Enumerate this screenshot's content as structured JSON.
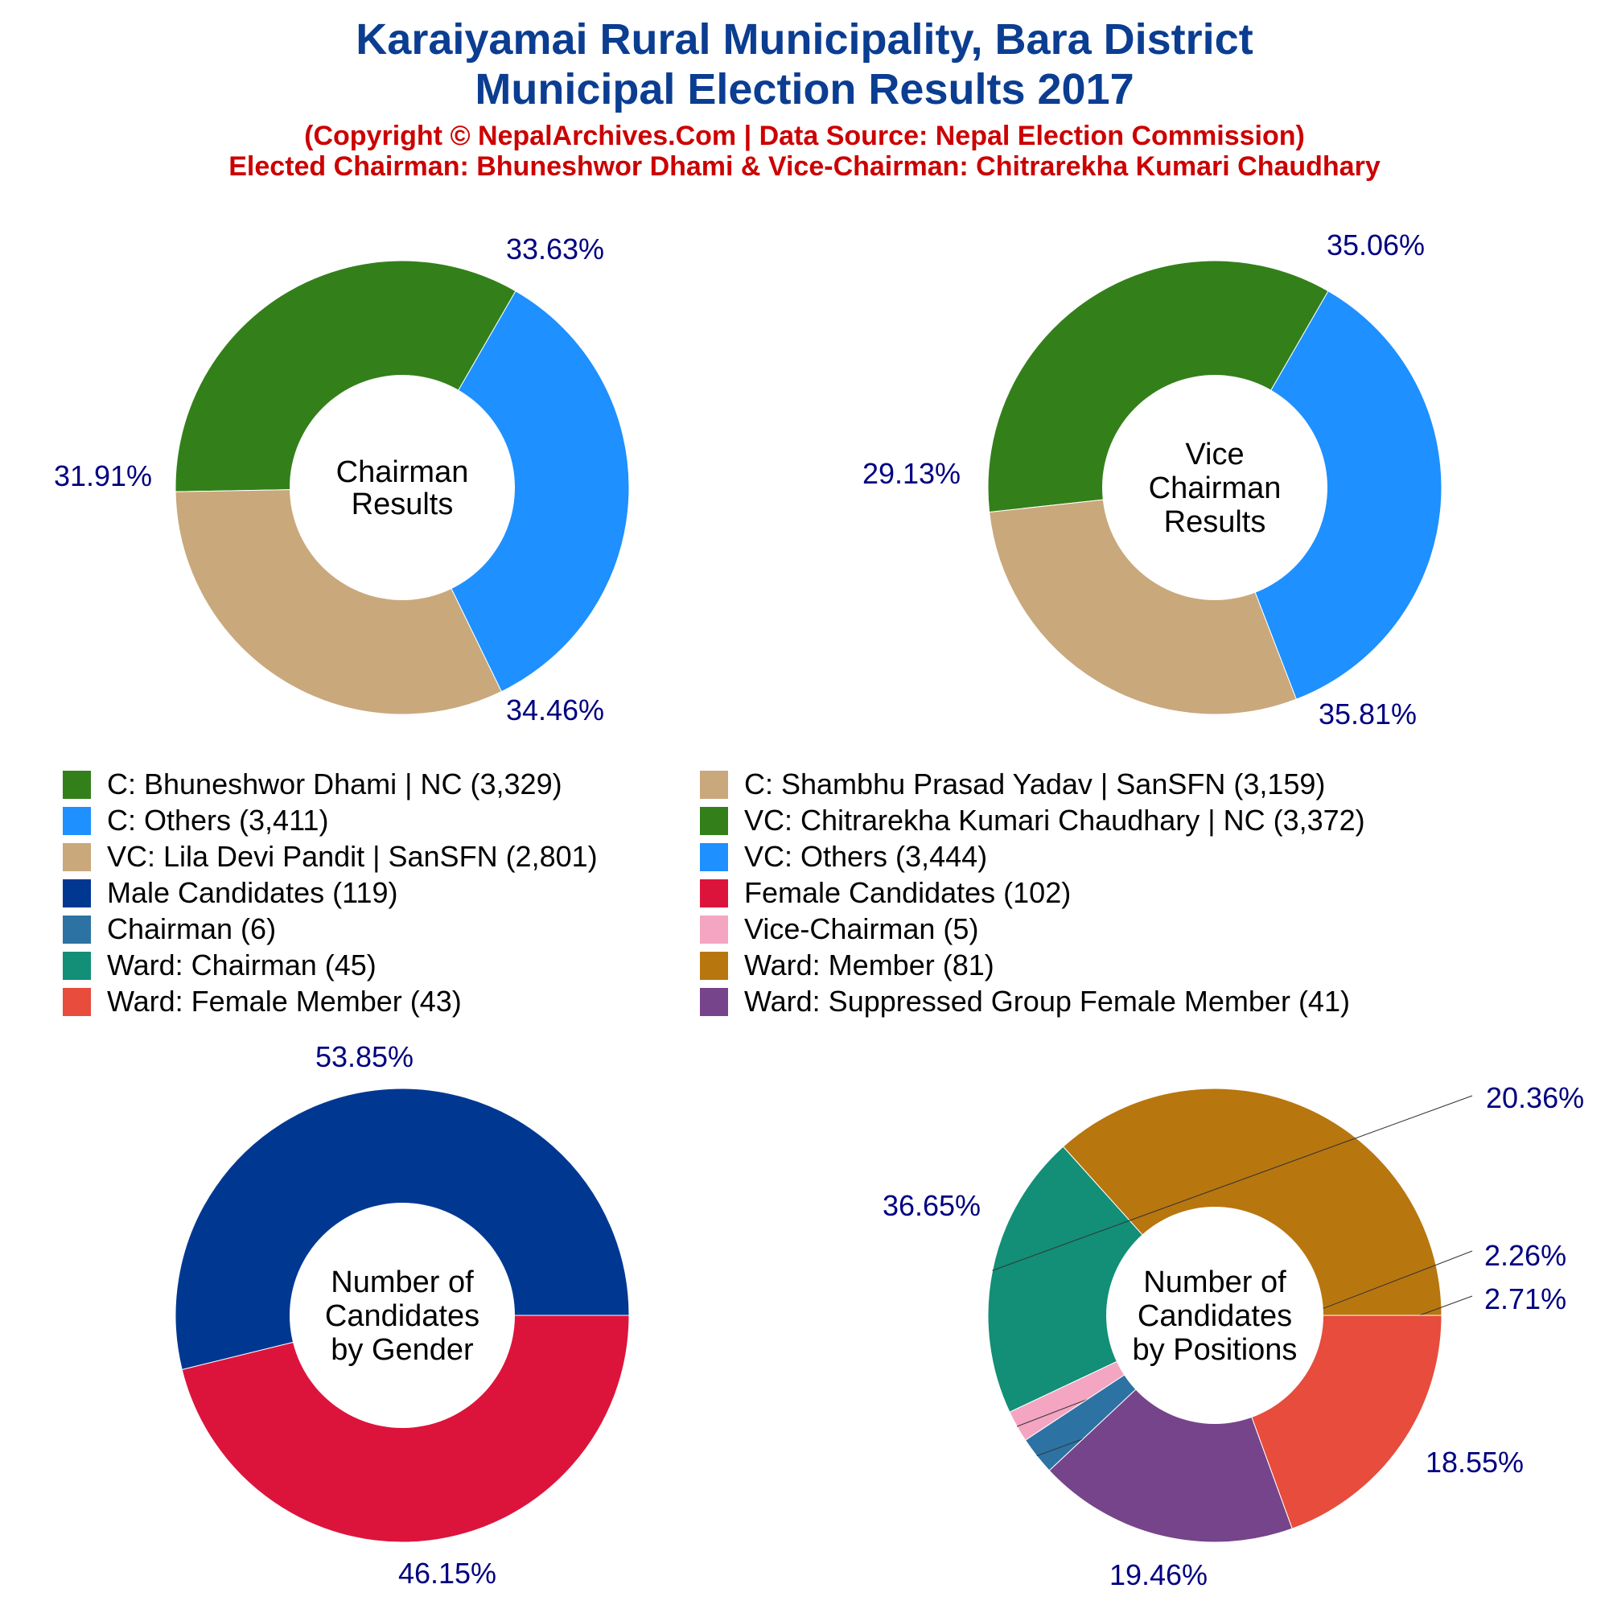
{
  "title": {
    "line1": "Karaiyamai Rural Municipality, Bara District",
    "line2": "Municipal Election Results 2017",
    "line3": "(Copyright © NepalArchives.Com | Data Source: Nepal Election Commission)",
    "line4": "Elected Chairman: Bhuneshwor Dhami & Vice-Chairman: Chitrarekha Kumari Chaudhary"
  },
  "legend": [
    {
      "label": "C: Bhuneshwor Dhami | NC (3,329)",
      "color": "#33801a"
    },
    {
      "label": "C: Shambhu Prasad Yadav | SanSFN (3,159)",
      "color": "#c9a87c"
    },
    {
      "label": "C: Others (3,411)",
      "color": "#1e90ff"
    },
    {
      "label": "VC: Chitrarekha Kumari Chaudhary | NC (3,372)",
      "color": "#33801a"
    },
    {
      "label": "VC: Lila Devi Pandit | SanSFN (2,801)",
      "color": "#c9a87c"
    },
    {
      "label": "VC: Others (3,444)",
      "color": "#1e90ff"
    },
    {
      "label": "Male Candidates (119)",
      "color": "#003891"
    },
    {
      "label": "Female Candidates (102)",
      "color": "#dc143c"
    },
    {
      "label": "Chairman (6)",
      "color": "#2c73a3"
    },
    {
      "label": "Vice-Chairman (5)",
      "color": "#f4a5c1"
    },
    {
      "label": "Ward: Chairman (45)",
      "color": "#128f76"
    },
    {
      "label": "Ward: Member (81)",
      "color": "#b8760f"
    },
    {
      "label": "Ward: Female Member (43)",
      "color": "#e74c3c"
    },
    {
      "label": "Ward: Suppressed Group Female Member (41)",
      "color": "#76448a"
    }
  ],
  "chart_data": [
    {
      "type": "pie",
      "center_label": [
        "Chairman",
        "Results"
      ],
      "slices": [
        {
          "label": "C: Bhuneshwor Dhami | NC",
          "value": 3329,
          "percent_label": "33.63%",
          "color": "#33801a"
        },
        {
          "label": "C: Shambhu Prasad Yadav | SanSFN",
          "value": 3159,
          "percent_label": "31.91%",
          "color": "#c9a87c"
        },
        {
          "label": "C: Others",
          "value": 3411,
          "percent_label": "34.46%",
          "color": "#1e90ff"
        }
      ]
    },
    {
      "type": "pie",
      "center_label": [
        "Vice",
        "Chairman",
        "Results"
      ],
      "slices": [
        {
          "label": "VC: Chitrarekha Kumari Chaudhary | NC",
          "value": 3372,
          "percent_label": "35.06%",
          "color": "#33801a"
        },
        {
          "label": "VC: Lila Devi Pandit | SanSFN",
          "value": 2801,
          "percent_label": "29.13%",
          "color": "#c9a87c"
        },
        {
          "label": "VC: Others",
          "value": 3444,
          "percent_label": "35.81%",
          "color": "#1e90ff"
        }
      ]
    },
    {
      "type": "pie",
      "center_label": [
        "Number of",
        "Candidates",
        "by Gender"
      ],
      "slices": [
        {
          "label": "Male Candidates",
          "value": 119,
          "percent_label": "53.85%",
          "color": "#003891"
        },
        {
          "label": "Female Candidates",
          "value": 102,
          "percent_label": "46.15%",
          "color": "#dc143c"
        }
      ]
    },
    {
      "type": "pie",
      "center_label": [
        "Number of",
        "Candidates",
        "by Positions"
      ],
      "slices": [
        {
          "label": "Ward: Member",
          "value": 81,
          "percent_label": "36.65%",
          "color": "#b8760f"
        },
        {
          "label": "Ward: Chairman",
          "value": 45,
          "percent_label": "20.36%",
          "color": "#128f76"
        },
        {
          "label": "Vice-Chairman",
          "value": 5,
          "percent_label": "2.26%",
          "color": "#f4a5c1"
        },
        {
          "label": "Chairman",
          "value": 6,
          "percent_label": "2.71%",
          "color": "#2c73a3"
        },
        {
          "label": "Ward: Suppressed Group Female Member",
          "value": 41,
          "percent_label": "18.55%",
          "color": "#76448a"
        },
        {
          "label": "Ward: Female Member",
          "value": 43,
          "percent_label": "19.46%",
          "color": "#e74c3c"
        }
      ]
    }
  ]
}
